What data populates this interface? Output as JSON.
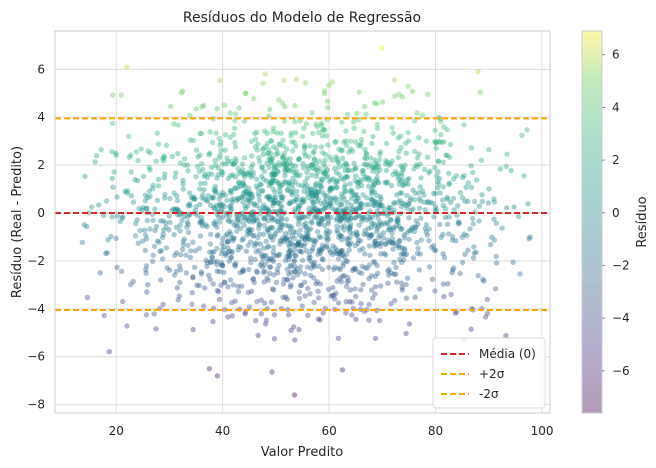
{
  "chart_data": {
    "type": "scatter",
    "title": "Resíduos do Modelo de Regressão",
    "xlabel": "Valor Predito",
    "ylabel": "Resíduo (Real - Predito)",
    "xlim": [
      8.5,
      101.5
    ],
    "ylim": [
      -8.35,
      7.6
    ],
    "xticks": [
      20,
      40,
      60,
      80,
      100
    ],
    "yticks": [
      -8,
      -6,
      -4,
      -2,
      0,
      2,
      4,
      6
    ],
    "grid": true,
    "colormap": "viridis",
    "point_alpha": 0.4,
    "point_count_approx": 2000,
    "x_spread": [
      12,
      98
    ],
    "residual_sd": 2.0,
    "notable_points": [
      {
        "x": 22,
        "y": 6.1
      },
      {
        "x": 70,
        "y": 6.9
      },
      {
        "x": 88,
        "y": 5.9
      },
      {
        "x": 48,
        "y": 5.8
      },
      {
        "x": 53.5,
        "y": -7.6
      },
      {
        "x": 39,
        "y": -6.8
      },
      {
        "x": 62.5,
        "y": -6.55
      },
      {
        "x": 37.5,
        "y": -6.5
      }
    ],
    "reference_lines": [
      {
        "label": "Média (0)",
        "y": 0.0,
        "color": "#d62728",
        "style": "dashed"
      },
      {
        "label": "+2σ",
        "y": 3.95,
        "color": "#ffa500",
        "style": "dashed"
      },
      {
        "label": "-2σ",
        "y": -4.05,
        "color": "#ffa500",
        "style": "dashed"
      }
    ],
    "legend_position": "bottom-right",
    "colorbar": {
      "label": "Resíduo",
      "range": [
        -7.6,
        6.9
      ],
      "ticks": [
        -6,
        -4,
        -2,
        0,
        2,
        4,
        6
      ]
    }
  }
}
